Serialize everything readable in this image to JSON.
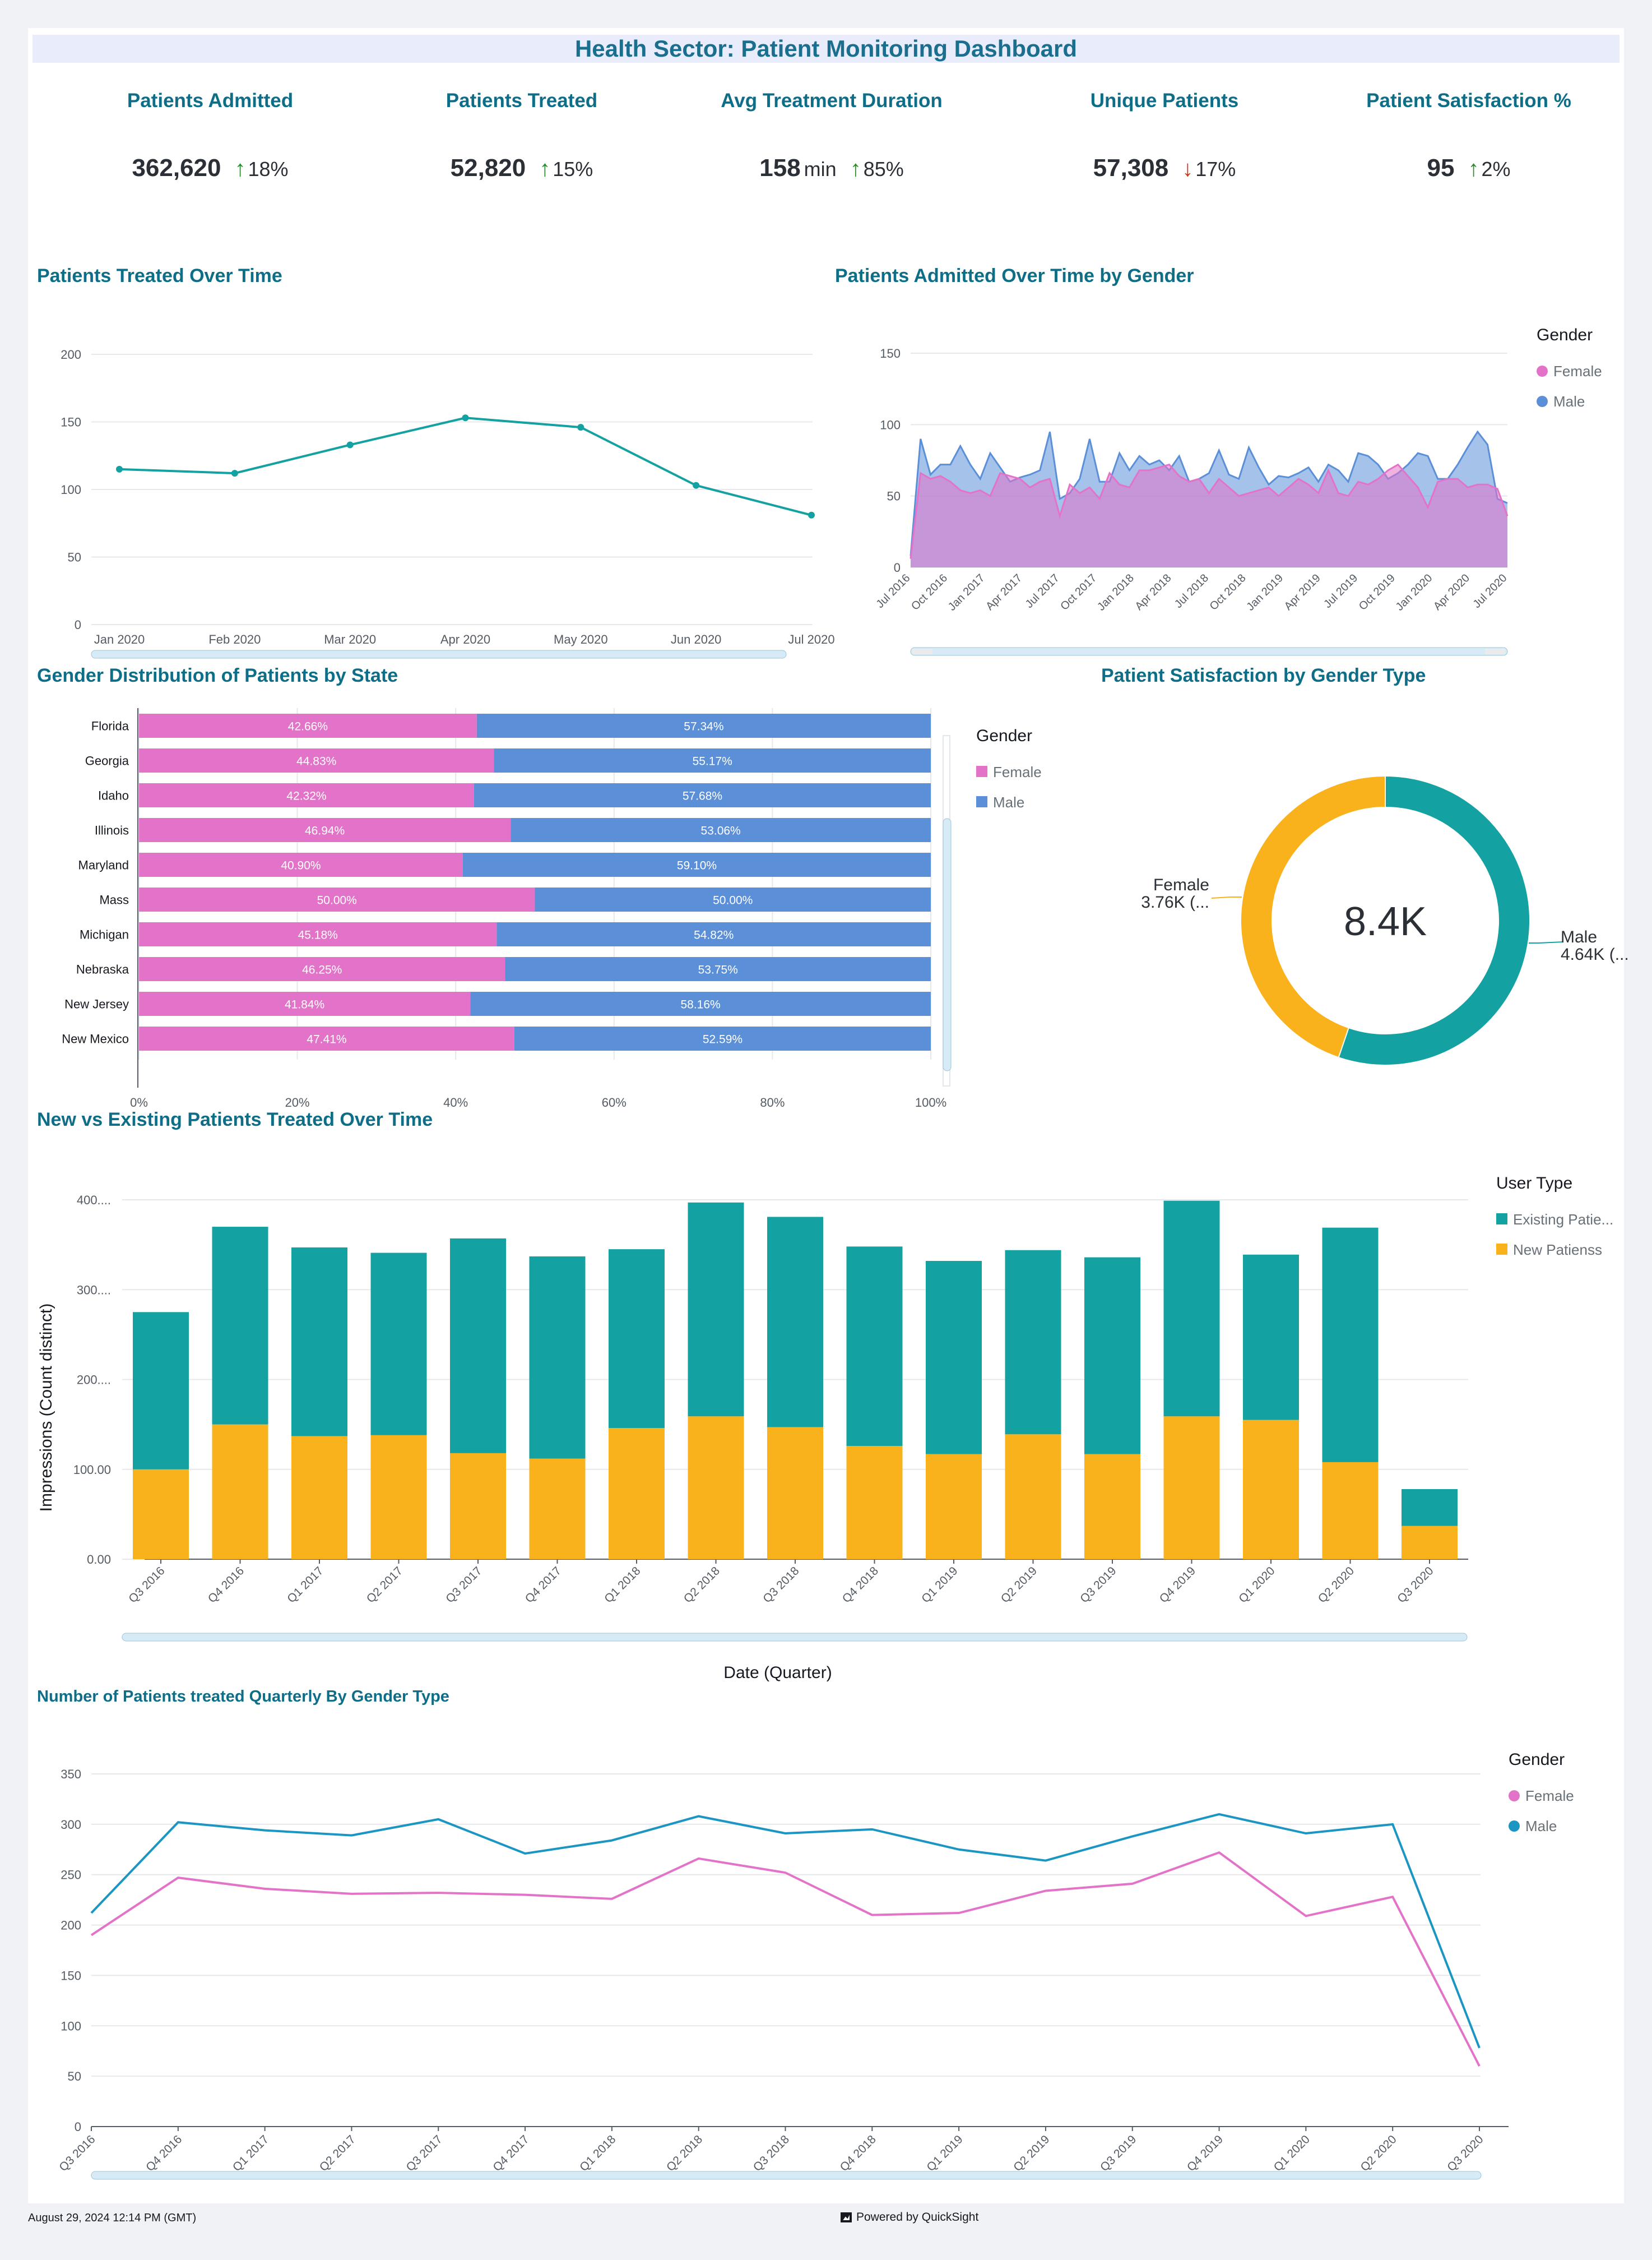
{
  "dashboard": {
    "title": "Health Sector: Patient Monitoring Dashboard"
  },
  "kpis": [
    {
      "title": "Patients Admitted",
      "value": "362,620",
      "unit": "",
      "arrow": "↑",
      "direction": "up",
      "change": "18%"
    },
    {
      "title": "Patients Treated",
      "value": "52,820",
      "unit": "",
      "arrow": "↑",
      "direction": "up",
      "change": "15%"
    },
    {
      "title": "Avg Treatment Duration",
      "value": "158",
      "unit": "min",
      "arrow": "↑",
      "direction": "up",
      "change": "85%"
    },
    {
      "title": "Unique Patients",
      "value": "57,308",
      "unit": "",
      "arrow": "↓",
      "direction": "down",
      "change": "17%"
    },
    {
      "title": "Patient Satisfaction %",
      "value": "95",
      "unit": "",
      "arrow": "↑",
      "direction": "up",
      "change": "2%"
    }
  ],
  "colors": {
    "teal": "#13a1a1",
    "female": "#e373c9",
    "male": "#5b8fd8",
    "orange": "#f9b21b",
    "line_male": "#1b96c2",
    "grid": "#e6e8eb",
    "axis": "#545b64",
    "scroll": "#d6ebf5"
  },
  "chart_data": [
    {
      "id": "patients_treated_over_time",
      "type": "line",
      "title": "Patients Treated Over Time",
      "categories": [
        "Jan 2020",
        "Feb 2020",
        "Mar 2020",
        "Apr 2020",
        "May 2020",
        "Jun 2020",
        "Jul 2020"
      ],
      "values": [
        115,
        112,
        133,
        153,
        146,
        103,
        81
      ],
      "ylim": [
        0,
        200
      ],
      "yticks": [
        "0",
        "50",
        "100",
        "150",
        "200"
      ]
    },
    {
      "id": "patients_admitted_by_gender",
      "type": "area",
      "title": "Patients Admitted Over Time by Gender",
      "legend_title": "Gender",
      "ylim": [
        0,
        150
      ],
      "yticks": [
        "0",
        "50",
        "100",
        "150"
      ],
      "xtick_labels": [
        "Jul 2016",
        "Oct 2016",
        "Jan 2017",
        "Apr 2017",
        "Jul 2017",
        "Oct 2017",
        "Jan 2018",
        "Apr 2018",
        "Jul 2018",
        "Oct 2018",
        "Jan 2019",
        "Apr 2019",
        "Jul 2019",
        "Oct 2019",
        "Jan 2020",
        "Apr 2020",
        "Jul 2020"
      ],
      "series": [
        {
          "name": "Male",
          "values": [
            8,
            90,
            65,
            72,
            72,
            85,
            72,
            62,
            80,
            70,
            60,
            63,
            65,
            68,
            95,
            48,
            52,
            62,
            90,
            60,
            60,
            80,
            68,
            78,
            72,
            75,
            68,
            78,
            60,
            62,
            66,
            82,
            65,
            62,
            84,
            70,
            58,
            64,
            63,
            66,
            70,
            60,
            72,
            68,
            60,
            80,
            78,
            72,
            62,
            66,
            72,
            80,
            78,
            62,
            62,
            72,
            84,
            95,
            86,
            48,
            45
          ]
        },
        {
          "name": "Female",
          "values": [
            6,
            66,
            62,
            64,
            60,
            54,
            52,
            54,
            50,
            66,
            64,
            62,
            56,
            60,
            62,
            36,
            58,
            52,
            56,
            48,
            66,
            58,
            56,
            68,
            68,
            70,
            72,
            64,
            60,
            62,
            52,
            62,
            56,
            50,
            52,
            54,
            56,
            50,
            56,
            62,
            58,
            52,
            68,
            52,
            50,
            60,
            58,
            62,
            68,
            72,
            64,
            56,
            42,
            60,
            62,
            62,
            56,
            58,
            58,
            55,
            36
          ]
        }
      ]
    },
    {
      "id": "gender_distribution_by_state",
      "type": "bar",
      "title": "Gender Distribution of Patients by State",
      "legend_title": "Gender",
      "categories": [
        "Florida",
        "Georgia",
        "Idaho",
        "Illinois",
        "Maryland",
        "Mass",
        "Michigan",
        "Nebraska",
        "New Jersey",
        "New Mexico"
      ],
      "series": [
        {
          "name": "Female",
          "values": [
            42.66,
            44.83,
            42.32,
            46.94,
            40.9,
            50.0,
            45.18,
            46.25,
            41.84,
            47.41
          ],
          "labels": [
            "42.66%",
            "44.83%",
            "42.32%",
            "46.94%",
            "40.90%",
            "50.00%",
            "45.18%",
            "46.25%",
            "41.84%",
            "47.41%"
          ]
        },
        {
          "name": "Male",
          "values": [
            57.34,
            55.17,
            57.68,
            53.06,
            59.1,
            50.0,
            54.82,
            53.75,
            58.16,
            52.59
          ],
          "labels": [
            "57.34%",
            "55.17%",
            "57.68%",
            "53.06%",
            "59.10%",
            "50.00%",
            "54.82%",
            "53.75%",
            "58.16%",
            "52.59%"
          ]
        }
      ],
      "xticks": [
        "0%",
        "20%",
        "40%",
        "60%",
        "80%",
        "100%"
      ]
    },
    {
      "id": "satisfaction_by_gender",
      "type": "pie",
      "title": "Patient Satisfaction by Gender Type",
      "center_label": "8.4K",
      "slices": [
        {
          "name": "Male",
          "value": 4.64,
          "label_line1": "Male",
          "label_line2": "4.64K (..."
        },
        {
          "name": "Female",
          "value": 3.76,
          "label_line1": "Female",
          "label_line2": "3.76K (..."
        }
      ]
    },
    {
      "id": "new_vs_existing",
      "type": "bar",
      "title": "New vs Existing Patients Treated Over Time",
      "legend_title": "User Type",
      "xlabel": "Date (Quarter)",
      "ylabel": "Impressions (Count distinct)",
      "ylim": [
        0,
        400
      ],
      "yticks": [
        "0.00",
        "100.00",
        "200....",
        "300....",
        "400...."
      ],
      "categories": [
        "Q3 2016",
        "Q4 2016",
        "Q1 2017",
        "Q2 2017",
        "Q3 2017",
        "Q4 2017",
        "Q1 2018",
        "Q2 2018",
        "Q3 2018",
        "Q4 2018",
        "Q1 2019",
        "Q2 2019",
        "Q3 2019",
        "Q4 2019",
        "Q1 2020",
        "Q2 2020",
        "Q3 2020"
      ],
      "series": [
        {
          "name": "New Patienss",
          "values": [
            100,
            150,
            137,
            138,
            118,
            112,
            146,
            159,
            147,
            126,
            117,
            139,
            117,
            159,
            155,
            108,
            37
          ]
        },
        {
          "name": "Existing Patie...",
          "values": [
            175,
            220,
            210,
            203,
            239,
            225,
            199,
            238,
            234,
            222,
            215,
            205,
            219,
            240,
            184,
            261,
            41
          ]
        }
      ]
    },
    {
      "id": "quarterly_by_gender",
      "type": "line",
      "title": "Number of Patients treated Quarterly By Gender Type",
      "legend_title": "Gender",
      "ylim": [
        0,
        350
      ],
      "yticks": [
        "0",
        "50",
        "100",
        "150",
        "200",
        "250",
        "300",
        "350"
      ],
      "categories": [
        "Q3 2016",
        "Q4 2016",
        "Q1 2017",
        "Q2 2017",
        "Q3 2017",
        "Q4 2017",
        "Q1 2018",
        "Q2 2018",
        "Q3 2018",
        "Q4 2018",
        "Q1 2019",
        "Q2 2019",
        "Q3 2019",
        "Q4 2019",
        "Q1 2020",
        "Q2 2020",
        "Q3 2020"
      ],
      "series": [
        {
          "name": "Female",
          "values": [
            190,
            247,
            236,
            231,
            232,
            230,
            226,
            266,
            252,
            210,
            212,
            234,
            241,
            272,
            209,
            228,
            60
          ]
        },
        {
          "name": "Male",
          "values": [
            212,
            302,
            294,
            289,
            305,
            271,
            284,
            308,
            291,
            295,
            275,
            264,
            288,
            310,
            291,
            300,
            78
          ]
        }
      ]
    }
  ],
  "footer": {
    "timestamp": "August 29, 2024 12:14 PM (GMT)",
    "powered": "Powered by QuickSight"
  }
}
